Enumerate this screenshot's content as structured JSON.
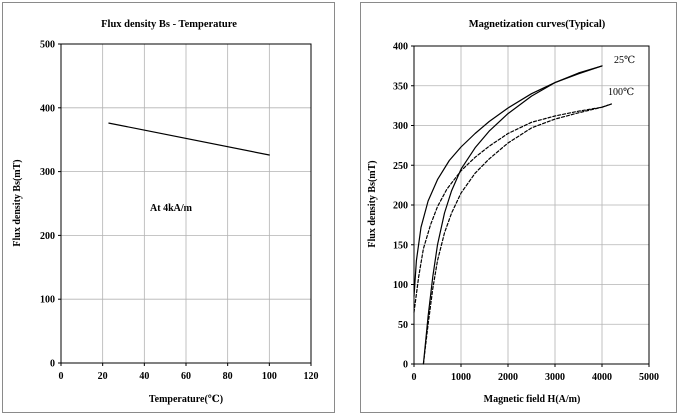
{
  "chart_data": [
    {
      "type": "line",
      "title": "Flux density Bs - Temperature",
      "xlabel": "Temperature(℃)",
      "ylabel": "Flux density Bs(mT)",
      "xlim": [
        0,
        120
      ],
      "ylim": [
        0,
        500
      ],
      "xticks": [
        "0",
        "20",
        "40",
        "60",
        "80",
        "100",
        "120"
      ],
      "yticks": [
        "0",
        "100",
        "200",
        "300",
        "400",
        "500"
      ],
      "grid": true,
      "annotation": "At 4kA/m",
      "series": [
        {
          "style": "solid",
          "x": [
            23,
            100
          ],
          "y": [
            376,
            326
          ]
        }
      ]
    },
    {
      "type": "line",
      "title": "Magnetization curves(Typical)",
      "xlabel": "Magnetic field H(A/m)",
      "ylabel": "Flux density Bs(mT)",
      "xlim": [
        0,
        5000
      ],
      "ylim": [
        0,
        400
      ],
      "xticks": [
        "0",
        "1000",
        "2000",
        "3000",
        "4000",
        "5000"
      ],
      "yticks": [
        "0",
        "50",
        "100",
        "150",
        "200",
        "250",
        "300",
        "350",
        "400"
      ],
      "grid": true,
      "series": [
        {
          "name": "25℃",
          "style": "solid",
          "segments": [
            {
              "x": [
                0,
                50,
                150,
                300,
                500,
                750,
                1000,
                1300,
                1600,
                2000,
                2500,
                3000,
                3500,
                4000
              ],
              "y": [
                85,
                130,
                172,
                205,
                232,
                256,
                273,
                290,
                305,
                322,
                340,
                354,
                365,
                375
              ]
            },
            {
              "x": [
                200,
                300,
                400,
                500,
                650,
                800,
                1000,
                1300,
                1600,
                2000,
                2500,
                3000,
                3500,
                4000
              ],
              "y": [
                0,
                60,
                110,
                150,
                190,
                218,
                245,
                272,
                293,
                315,
                337,
                354,
                366,
                375
              ]
            }
          ]
        },
        {
          "name": "100℃",
          "style": "dashed",
          "segments": [
            {
              "x": [
                0,
                100,
                200,
                350,
                500,
                700,
                1000,
                1300,
                1600,
                2000,
                2500,
                3000,
                3500,
                4000,
                4200
              ],
              "y": [
                65,
                110,
                145,
                175,
                198,
                220,
                243,
                260,
                274,
                290,
                304,
                312,
                318,
                323,
                327
              ]
            },
            {
              "x": [
                200,
                300,
                400,
                500,
                650,
                800,
                1000,
                1300,
                1600,
                2000,
                2500,
                3000,
                3500,
                4000,
                4200
              ],
              "y": [
                0,
                50,
                95,
                130,
                165,
                190,
                215,
                240,
                258,
                278,
                297,
                308,
                316,
                323,
                327
              ]
            }
          ]
        }
      ]
    }
  ]
}
